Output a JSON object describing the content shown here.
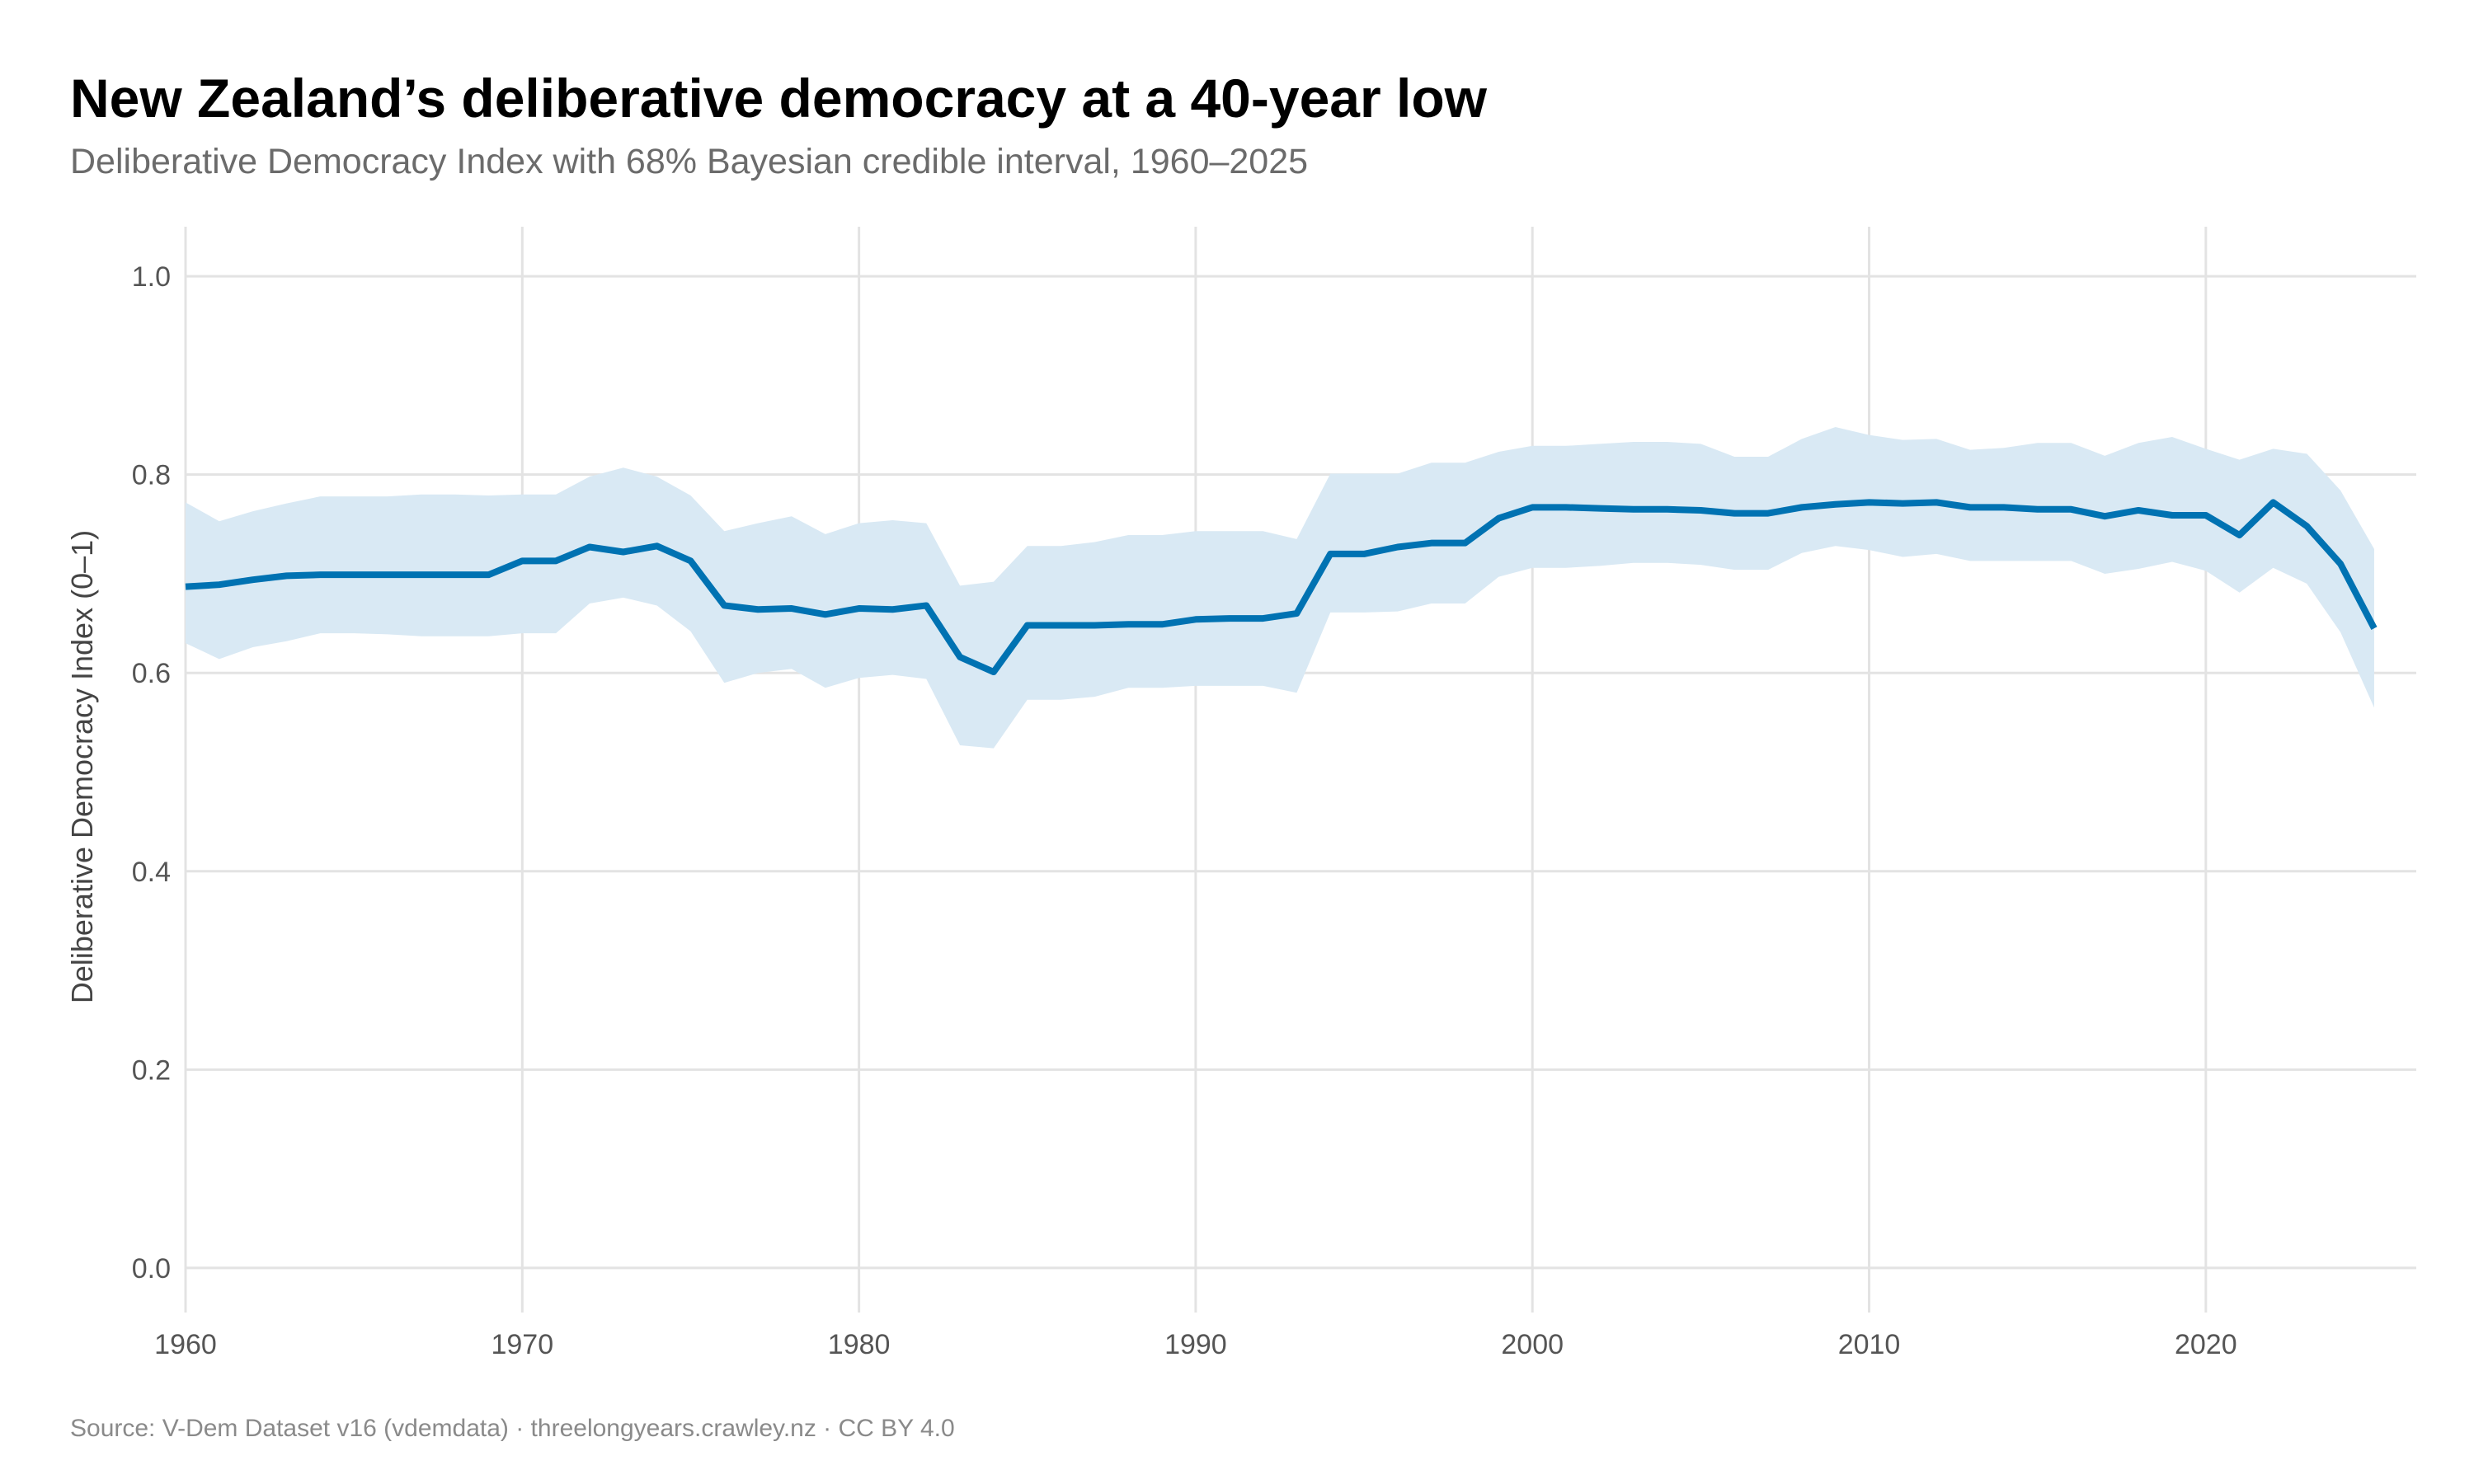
{
  "chart_data": {
    "type": "line",
    "title": "New Zealand’s deliberative democracy at a 40-year low",
    "subtitle": "Deliberative Democracy Index with 68% Bayesian credible interval, 1960–2025",
    "xlabel": "",
    "ylabel": "Deliberative Democracy Index (0–1)",
    "caption": "Source: V-Dem Dataset v16 (vdemdata) · threelongyears.crawley.nz · CC BY 4.0",
    "xlim": [
      1960,
      2026.25
    ],
    "ylim": [
      -0.045,
      1.05
    ],
    "x_ticks": [
      1960,
      1970,
      1980,
      1990,
      2000,
      2010,
      2020
    ],
    "y_ticks": [
      "0.0",
      "0.2",
      "0.4",
      "0.6",
      "0.8",
      "1.0"
    ],
    "grid": true,
    "colors": {
      "line": "#0072B2",
      "band": "#d9e9f4",
      "grid": "#e3e3e3"
    },
    "x": [
      1960,
      1961,
      1962,
      1963,
      1964,
      1965,
      1966,
      1967,
      1968,
      1969,
      1970,
      1971,
      1972,
      1973,
      1974,
      1975,
      1976,
      1977,
      1978,
      1979,
      1980,
      1981,
      1982,
      1983,
      1984,
      1985,
      1986,
      1987,
      1988,
      1989,
      1990,
      1991,
      1992,
      1993,
      1994,
      1995,
      1996,
      1997,
      1998,
      1999,
      2000,
      2001,
      2002,
      2003,
      2004,
      2005,
      2006,
      2007,
      2008,
      2009,
      2010,
      2011,
      2012,
      2013,
      2014,
      2015,
      2016,
      2017,
      2018,
      2019,
      2020,
      2021,
      2022,
      2023,
      2024,
      2025
    ],
    "series": [
      {
        "values": [
          0.687,
          0.689,
          0.694,
          0.698,
          0.699,
          0.699,
          0.699,
          0.699,
          0.699,
          0.699,
          0.713,
          0.713,
          0.727,
          0.722,
          0.728,
          0.713,
          0.668,
          0.664,
          0.665,
          0.659,
          0.665,
          0.664,
          0.668,
          0.616,
          0.601,
          0.648,
          0.648,
          0.648,
          0.649,
          0.649,
          0.654,
          0.655,
          0.655,
          0.66,
          0.72,
          0.72,
          0.727,
          0.731,
          0.731,
          0.756,
          0.767,
          0.767,
          0.766,
          0.765,
          0.765,
          0.764,
          0.761,
          0.761,
          0.767,
          0.77,
          0.772,
          0.771,
          0.772,
          0.767,
          0.767,
          0.765,
          0.765,
          0.758,
          0.764,
          0.759,
          0.759,
          0.739,
          0.772,
          0.748,
          0.71,
          0.645
        ],
        "lower": [
          0.63,
          0.614,
          0.626,
          0.632,
          0.64,
          0.64,
          0.639,
          0.637,
          0.637,
          0.637,
          0.64,
          0.64,
          0.67,
          0.676,
          0.668,
          0.642,
          0.59,
          0.6,
          0.604,
          0.585,
          0.595,
          0.598,
          0.594,
          0.527,
          0.524,
          0.573,
          0.573,
          0.576,
          0.585,
          0.585,
          0.587,
          0.587,
          0.587,
          0.58,
          0.661,
          0.661,
          0.662,
          0.67,
          0.67,
          0.697,
          0.706,
          0.706,
          0.708,
          0.711,
          0.711,
          0.709,
          0.704,
          0.704,
          0.721,
          0.728,
          0.724,
          0.717,
          0.72,
          0.713,
          0.713,
          0.713,
          0.713,
          0.7,
          0.705,
          0.712,
          0.703,
          0.681,
          0.706,
          0.69,
          0.641,
          0.565
        ],
        "upper": [
          0.772,
          0.753,
          0.763,
          0.771,
          0.778,
          0.778,
          0.778,
          0.78,
          0.78,
          0.779,
          0.78,
          0.78,
          0.798,
          0.807,
          0.798,
          0.779,
          0.743,
          0.751,
          0.758,
          0.74,
          0.751,
          0.754,
          0.751,
          0.688,
          0.692,
          0.728,
          0.728,
          0.732,
          0.739,
          0.739,
          0.743,
          0.743,
          0.743,
          0.735,
          0.801,
          0.801,
          0.801,
          0.812,
          0.812,
          0.823,
          0.829,
          0.829,
          0.831,
          0.833,
          0.833,
          0.831,
          0.818,
          0.818,
          0.836,
          0.848,
          0.84,
          0.835,
          0.836,
          0.825,
          0.827,
          0.832,
          0.832,
          0.819,
          0.832,
          0.838,
          0.826,
          0.815,
          0.826,
          0.821,
          0.784,
          0.725
        ]
      }
    ]
  }
}
